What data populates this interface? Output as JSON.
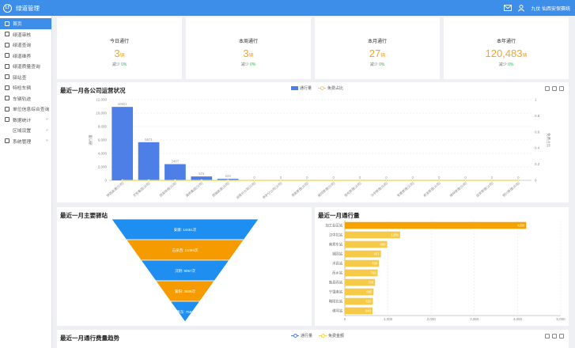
{
  "app": {
    "title": "绿道管理",
    "logo_text": "LT",
    "user_label": "九仗 仙西安保赛统"
  },
  "sidebar": {
    "items": [
      {
        "label": "首页",
        "active": true,
        "icon": "home-icon"
      },
      {
        "label": "绿道审核",
        "icon": "check-icon"
      },
      {
        "label": "绿道查询",
        "icon": "doc-icon"
      },
      {
        "label": "绿道维养",
        "icon": "tool-icon"
      },
      {
        "label": "绿道质量查询",
        "icon": "search-icon"
      },
      {
        "label": "驿站查",
        "icon": "station-icon"
      },
      {
        "label": "特检车辆",
        "icon": "truck-icon"
      },
      {
        "label": "车辆轨迹",
        "icon": "route-icon"
      },
      {
        "label": "单位信息综合查询",
        "icon": "grid-icon"
      },
      {
        "label": "数据统计",
        "icon": "folder-icon",
        "chevron": "›"
      },
      {
        "label": "区域设置",
        "icon": "",
        "chevron": "›",
        "sub": true
      },
      {
        "label": "系统管理",
        "icon": "gear-icon",
        "chevron": "›"
      }
    ]
  },
  "stats": [
    {
      "label": "今日通行",
      "value": "3",
      "unit": "辆",
      "cmp_label": "减少",
      "cmp_value": "0%"
    },
    {
      "label": "本周通行",
      "value": "3",
      "unit": "辆",
      "cmp_label": "减少",
      "cmp_value": "0%"
    },
    {
      "label": "本月通行",
      "value": "27",
      "unit": "辆",
      "cmp_label": "减少",
      "cmp_value": "0%"
    },
    {
      "label": "本年通行",
      "value": "120,483",
      "unit": "辆",
      "cmp_label": "减少",
      "cmp_value": "0%"
    }
  ],
  "panels": {
    "company": {
      "title": "最近一月各公司运营状况",
      "legend_bar": "通行量",
      "legend_line": "免费占比",
      "ylabel_left": "通行量",
      "ylabel_right": "免费占比"
    },
    "funnel": {
      "title": "最近一月主要驿站"
    },
    "ranking": {
      "title": "最近一月通行量"
    },
    "trend": {
      "title": "最近一月通行费量趋势",
      "legend_a": "通行量",
      "legend_b": "免费金额"
    }
  },
  "chart_data": [
    {
      "type": "bar",
      "categories": [
        "陕西高速(公司)",
        "交投集团(公司)",
        "西安绕城(公司)",
        "路桥集团(公司)",
        "西镇高速(公司)",
        "运营分公司(公司)",
        "养护分公司(公司)",
        "渭南管理(公司)",
        "咸阳管理(公司)",
        "宝鸡管理(公司)",
        "汉中管理(公司)",
        "安康管理(公司)",
        "商洛管理(公司)",
        "榆林管理(公司)",
        "延安管理(公司)",
        "铜川管理(公司)"
      ],
      "series": [
        {
          "name": "通行量",
          "values": [
            10921,
            5671,
            2407,
            574,
            223,
            0,
            0,
            0,
            0,
            0,
            0,
            0,
            0,
            0,
            0,
            0
          ],
          "labels": [
            "10921",
            "5671",
            "2407",
            "574",
            "223",
            "0",
            "0",
            "0",
            "0",
            "0",
            "0",
            "0",
            "0",
            "0",
            "0",
            "0"
          ]
        },
        {
          "name": "免费占比",
          "values": [
            0,
            0,
            0,
            0,
            0,
            0,
            0,
            0,
            0,
            0,
            0,
            0,
            0,
            0,
            0,
            0
          ]
        }
      ],
      "yticks_left": [
        "0",
        "2,000",
        "4,000",
        "6,000",
        "8,000",
        "10,000",
        "12,000"
      ],
      "yticks_right": [
        "0",
        "0.2",
        "0.4",
        "0.6",
        "0.8",
        "1"
      ],
      "ylim": [
        0,
        12000
      ],
      "ylim_right": [
        0,
        1
      ],
      "colors": {
        "bar": "#4d7fe6",
        "line": "#f7d24b"
      }
    },
    {
      "type": "funnel",
      "labels": [
        "安康: 14451次",
        "石泉西: 11094次",
        "汉阴: 9057次",
        "紫阳: 3609次",
        "安康东: 7580次"
      ],
      "values": [
        14451,
        11094,
        9057,
        3609,
        7580
      ],
      "colors": [
        "#1f8ef1",
        "#f59b00",
        "#1f8ef1",
        "#f59b00",
        "#1f8ef1"
      ]
    },
    {
      "type": "bar",
      "orientation": "horizontal",
      "categories": [
        "加工业区站",
        "汉中北站",
        "南郑东站",
        "城固站",
        "洋县站",
        "西乡站",
        "勉县西站",
        "宁强南站",
        "略阳北站",
        "佛坪站"
      ],
      "values": [
        4200,
        1280,
        980,
        837,
        790,
        760,
        700,
        665,
        650,
        640
      ],
      "labels": [
        "4200",
        "1280",
        "980",
        "837",
        "790",
        "760",
        "700",
        "665",
        "650",
        "640"
      ],
      "xticks": [
        "0",
        "1,000",
        "2,000",
        "3,000",
        "4,000",
        "5,000"
      ],
      "xlim": [
        0,
        5000
      ],
      "colors": {
        "top": "#f5a300",
        "rest": "#f7c948"
      }
    }
  ]
}
